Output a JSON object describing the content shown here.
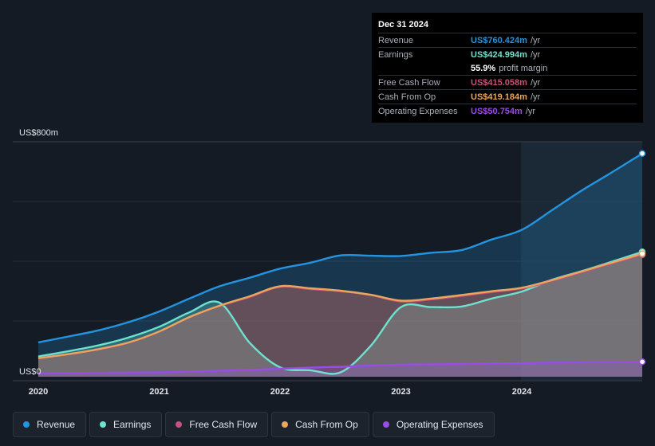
{
  "tooltip": {
    "date": "Dec 31 2024",
    "rows": [
      {
        "label": "Revenue",
        "value": "US$760.424m",
        "unit": "/yr",
        "color": "#2394df"
      },
      {
        "label": "Earnings",
        "value": "US$424.994m",
        "unit": "/yr",
        "color": "#6ee1cf"
      },
      {
        "label": "Free Cash Flow",
        "value": "US$415.058m",
        "unit": "/yr",
        "color": "#c7517a"
      },
      {
        "label": "Cash From Op",
        "value": "US$419.184m",
        "unit": "/yr",
        "color": "#eaa55e"
      },
      {
        "label": "Operating Expenses",
        "value": "US$50.754m",
        "unit": "/yr",
        "color": "#9a4ce6"
      }
    ],
    "margin": {
      "value": "55.9%",
      "text": "profit margin"
    }
  },
  "legend": [
    {
      "label": "Revenue",
      "color": "#2394df"
    },
    {
      "label": "Earnings",
      "color": "#6ee1cf"
    },
    {
      "label": "Free Cash Flow",
      "color": "#c7517a"
    },
    {
      "label": "Cash From Op",
      "color": "#eaa55e"
    },
    {
      "label": "Operating Expenses",
      "color": "#9a4ce6"
    }
  ],
  "chart_data": {
    "type": "area",
    "ylim": [
      0,
      800
    ],
    "y_top_label": "US$800m",
    "y_bottom_label": "US$0",
    "xlim": [
      2019.9,
      2025.0
    ],
    "x_ticks": [
      {
        "value": 2020,
        "label": "2020"
      },
      {
        "value": 2021,
        "label": "2021"
      },
      {
        "value": 2022,
        "label": "2022"
      },
      {
        "value": 2023,
        "label": "2023"
      },
      {
        "value": 2024,
        "label": "2024"
      }
    ],
    "forecast_start": 2024.0,
    "series": [
      {
        "name": "Revenue",
        "color": "#2394df",
        "x": [
          2020.0,
          2020.25,
          2020.5,
          2020.75,
          2021.0,
          2021.25,
          2021.5,
          2021.75,
          2022.0,
          2022.25,
          2022.5,
          2022.75,
          2023.0,
          2023.25,
          2023.5,
          2023.75,
          2024.0,
          2024.25,
          2024.5,
          2024.75,
          2025.0
        ],
        "values": [
          117,
          137,
          158,
          186,
          222,
          266,
          308,
          337,
          368,
          388,
          413,
          412,
          411,
          422,
          431,
          467,
          500,
          567,
          635,
          697,
          760
        ]
      },
      {
        "name": "Earnings",
        "color": "#6ee1cf",
        "x": [
          2020.0,
          2020.25,
          2020.5,
          2020.75,
          2021.0,
          2021.25,
          2021.5,
          2021.75,
          2022.0,
          2022.25,
          2022.5,
          2022.75,
          2023.0,
          2023.25,
          2023.5,
          2023.75,
          2024.0,
          2024.25,
          2024.5,
          2024.75,
          2025.0
        ],
        "values": [
          69,
          87,
          107,
          134,
          170,
          219,
          252,
          115,
          32,
          22,
          15,
          105,
          237,
          237,
          239,
          266,
          290,
          330,
          360,
          392,
          425
        ]
      },
      {
        "name": "Free Cash Flow",
        "color": "#c7517a",
        "x": [
          2020.0,
          2020.25,
          2020.5,
          2020.75,
          2021.0,
          2021.25,
          2021.5,
          2021.75,
          2022.0,
          2022.25,
          2022.5,
          2022.75,
          2023.0,
          2023.25,
          2023.5,
          2023.75,
          2024.0,
          2024.25,
          2024.5,
          2024.75,
          2025.0
        ],
        "values": [
          62,
          75,
          92,
          115,
          152,
          201,
          240,
          270,
          305,
          297,
          290,
          277,
          255,
          262,
          274,
          287,
          299,
          325,
          355,
          385,
          415
        ]
      },
      {
        "name": "Cash From Op",
        "color": "#eaa55e",
        "x": [
          2020.0,
          2020.25,
          2020.5,
          2020.75,
          2021.0,
          2021.25,
          2021.5,
          2021.75,
          2022.0,
          2022.25,
          2022.5,
          2022.75,
          2023.0,
          2023.25,
          2023.5,
          2023.75,
          2024.0,
          2024.25,
          2024.5,
          2024.75,
          2025.0
        ],
        "values": [
          63,
          77,
          94,
          117,
          154,
          203,
          242,
          274,
          308,
          301,
          293,
          279,
          259,
          266,
          278,
          291,
          303,
          329,
          359,
          389,
          419
        ]
      },
      {
        "name": "Operating Expenses",
        "color": "#9a4ce6",
        "x": [
          2020.0,
          2020.25,
          2020.5,
          2020.75,
          2021.0,
          2021.25,
          2021.5,
          2021.75,
          2022.0,
          2022.25,
          2022.5,
          2022.75,
          2023.0,
          2023.25,
          2023.5,
          2023.75,
          2024.0,
          2024.25,
          2024.5,
          2024.75,
          2025.0
        ],
        "values": [
          11,
          12,
          13,
          14,
          15,
          17,
          20,
          23,
          27,
          31,
          34,
          38,
          41,
          42,
          43,
          45,
          46,
          48,
          49,
          50,
          51
        ]
      }
    ]
  }
}
